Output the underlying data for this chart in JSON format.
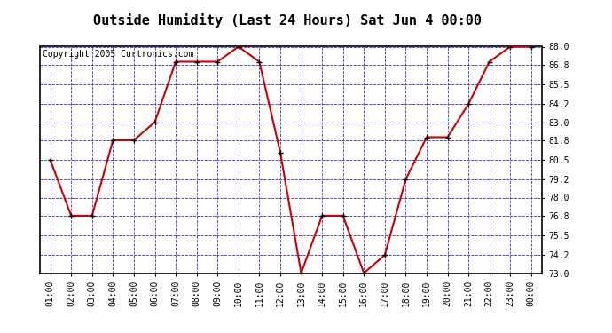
{
  "title": "Outside Humidity (Last 24 Hours) Sat Jun 4 00:00",
  "copyright": "Copyright 2005 Curtronics.com",
  "x_labels": [
    "01:00",
    "02:00",
    "03:00",
    "04:00",
    "05:00",
    "06:00",
    "07:00",
    "08:00",
    "09:00",
    "10:00",
    "11:00",
    "12:00",
    "13:00",
    "14:00",
    "15:00",
    "16:00",
    "17:00",
    "18:00",
    "19:00",
    "20:00",
    "21:00",
    "22:00",
    "23:00",
    "00:00"
  ],
  "x_values": [
    1,
    2,
    3,
    4,
    5,
    6,
    7,
    8,
    9,
    10,
    11,
    12,
    13,
    14,
    15,
    16,
    17,
    18,
    19,
    20,
    21,
    22,
    23,
    24
  ],
  "y_values": [
    80.5,
    76.8,
    76.8,
    81.8,
    81.8,
    83.0,
    87.0,
    87.0,
    87.0,
    88.0,
    87.0,
    81.0,
    73.0,
    76.8,
    76.8,
    73.0,
    74.2,
    79.2,
    82.0,
    82.0,
    84.2,
    87.0,
    88.0,
    88.0
  ],
  "y_ticks": [
    73.0,
    74.2,
    75.5,
    76.8,
    78.0,
    79.2,
    80.5,
    81.8,
    83.0,
    84.2,
    85.5,
    86.8,
    88.0
  ],
  "ylim": [
    73.0,
    88.0
  ],
  "line_color": "#cc0000",
  "marker_color": "#000000",
  "bg_color": "#ffffff",
  "outer_bg_color": "#ffffff",
  "grid_color": "#3333cc",
  "title_color": "#000000",
  "title_fontsize": 11,
  "copyright_fontsize": 7
}
